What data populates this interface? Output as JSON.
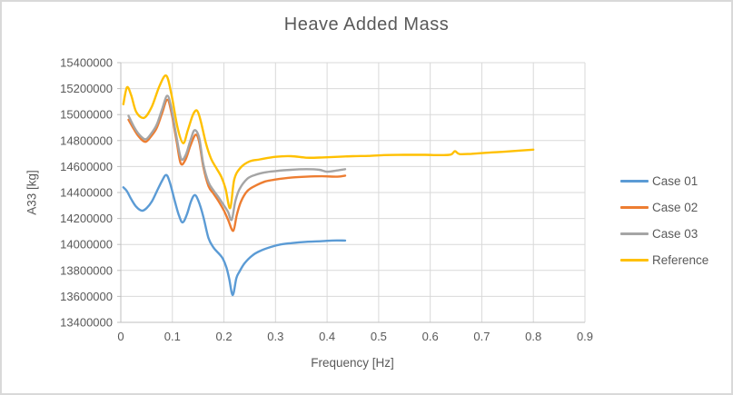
{
  "chart_data": {
    "type": "line",
    "title": "Heave Added Mass",
    "xlabel": "Frequency [Hz]",
    "ylabel": "A33 [kg]",
    "xlim": [
      0,
      0.9
    ],
    "ylim": [
      13400000,
      15400000
    ],
    "x_ticks": [
      0,
      0.1,
      0.2,
      0.3,
      0.4,
      0.5,
      0.6,
      0.7,
      0.8,
      0.9
    ],
    "x_tick_labels": [
      "0",
      "0.1",
      "0.2",
      "0.3",
      "0.4",
      "0.5",
      "0.6",
      "0.7",
      "0.8",
      "0.9"
    ],
    "y_ticks": [
      13400000,
      13600000,
      13800000,
      14000000,
      14200000,
      14400000,
      14600000,
      14800000,
      15000000,
      15200000,
      15400000
    ],
    "y_tick_labels": [
      "13400000",
      "13600000",
      "13800000",
      "14000000",
      "14200000",
      "14400000",
      "14600000",
      "14800000",
      "15000000",
      "15200000",
      "15400000"
    ],
    "grid": true,
    "legend_position": "right",
    "text_color": "#595959",
    "grid_color": "#D9D9D9",
    "axis_color": "#BFBFBF",
    "series": [
      {
        "name": "Case 01",
        "color": "#5B9BD5",
        "points": [
          [
            0.005,
            14440000
          ],
          [
            0.012,
            14410000
          ],
          [
            0.02,
            14350000
          ],
          [
            0.03,
            14290000
          ],
          [
            0.041,
            14260000
          ],
          [
            0.05,
            14280000
          ],
          [
            0.06,
            14330000
          ],
          [
            0.07,
            14410000
          ],
          [
            0.08,
            14490000
          ],
          [
            0.088,
            14535000
          ],
          [
            0.095,
            14480000
          ],
          [
            0.105,
            14330000
          ],
          [
            0.113,
            14220000
          ],
          [
            0.12,
            14170000
          ],
          [
            0.128,
            14230000
          ],
          [
            0.136,
            14330000
          ],
          [
            0.143,
            14380000
          ],
          [
            0.15,
            14340000
          ],
          [
            0.16,
            14215000
          ],
          [
            0.17,
            14050000
          ],
          [
            0.18,
            13975000
          ],
          [
            0.19,
            13930000
          ],
          [
            0.198,
            13890000
          ],
          [
            0.205,
            13820000
          ],
          [
            0.21,
            13740000
          ],
          [
            0.217,
            13610000
          ],
          [
            0.224,
            13740000
          ],
          [
            0.23,
            13790000
          ],
          [
            0.24,
            13855000
          ],
          [
            0.255,
            13915000
          ],
          [
            0.27,
            13950000
          ],
          [
            0.29,
            13980000
          ],
          [
            0.31,
            14000000
          ],
          [
            0.33,
            14010000
          ],
          [
            0.36,
            14020000
          ],
          [
            0.39,
            14025000
          ],
          [
            0.41,
            14030000
          ],
          [
            0.435,
            14030000
          ]
        ]
      },
      {
        "name": "Case 02",
        "color": "#ED7D31",
        "points": [
          [
            0.015,
            14960000
          ],
          [
            0.025,
            14890000
          ],
          [
            0.035,
            14830000
          ],
          [
            0.048,
            14790000
          ],
          [
            0.06,
            14840000
          ],
          [
            0.07,
            14900000
          ],
          [
            0.08,
            15010000
          ],
          [
            0.09,
            15115000
          ],
          [
            0.098,
            15020000
          ],
          [
            0.108,
            14800000
          ],
          [
            0.116,
            14625000
          ],
          [
            0.125,
            14650000
          ],
          [
            0.135,
            14760000
          ],
          [
            0.145,
            14845000
          ],
          [
            0.152,
            14790000
          ],
          [
            0.16,
            14600000
          ],
          [
            0.17,
            14450000
          ],
          [
            0.18,
            14390000
          ],
          [
            0.19,
            14330000
          ],
          [
            0.2,
            14260000
          ],
          [
            0.208,
            14190000
          ],
          [
            0.218,
            14105000
          ],
          [
            0.225,
            14230000
          ],
          [
            0.233,
            14330000
          ],
          [
            0.245,
            14410000
          ],
          [
            0.26,
            14450000
          ],
          [
            0.28,
            14485000
          ],
          [
            0.3,
            14500000
          ],
          [
            0.33,
            14515000
          ],
          [
            0.36,
            14522000
          ],
          [
            0.39,
            14525000
          ],
          [
            0.42,
            14522000
          ],
          [
            0.435,
            14530000
          ]
        ]
      },
      {
        "name": "Case 03",
        "color": "#A5A5A5",
        "points": [
          [
            0.015,
            14990000
          ],
          [
            0.025,
            14910000
          ],
          [
            0.035,
            14850000
          ],
          [
            0.048,
            14810000
          ],
          [
            0.06,
            14860000
          ],
          [
            0.07,
            14925000
          ],
          [
            0.08,
            15040000
          ],
          [
            0.09,
            15145000
          ],
          [
            0.098,
            15050000
          ],
          [
            0.108,
            14830000
          ],
          [
            0.117,
            14660000
          ],
          [
            0.126,
            14690000
          ],
          [
            0.135,
            14800000
          ],
          [
            0.143,
            14880000
          ],
          [
            0.152,
            14820000
          ],
          [
            0.16,
            14620000
          ],
          [
            0.17,
            14480000
          ],
          [
            0.18,
            14415000
          ],
          [
            0.19,
            14360000
          ],
          [
            0.2,
            14300000
          ],
          [
            0.208,
            14250000
          ],
          [
            0.215,
            14190000
          ],
          [
            0.222,
            14330000
          ],
          [
            0.23,
            14425000
          ],
          [
            0.245,
            14505000
          ],
          [
            0.26,
            14535000
          ],
          [
            0.28,
            14555000
          ],
          [
            0.3,
            14565000
          ],
          [
            0.33,
            14575000
          ],
          [
            0.36,
            14580000
          ],
          [
            0.385,
            14575000
          ],
          [
            0.4,
            14560000
          ],
          [
            0.42,
            14570000
          ],
          [
            0.435,
            14580000
          ]
        ]
      },
      {
        "name": "Reference",
        "color": "#FFC000",
        "points": [
          [
            0.005,
            15080000
          ],
          [
            0.012,
            15210000
          ],
          [
            0.02,
            15150000
          ],
          [
            0.03,
            15020000
          ],
          [
            0.045,
            14975000
          ],
          [
            0.06,
            15060000
          ],
          [
            0.075,
            15220000
          ],
          [
            0.088,
            15300000
          ],
          [
            0.098,
            15160000
          ],
          [
            0.11,
            14900000
          ],
          [
            0.121,
            14780000
          ],
          [
            0.13,
            14880000
          ],
          [
            0.14,
            15000000
          ],
          [
            0.148,
            15030000
          ],
          [
            0.155,
            14950000
          ],
          [
            0.165,
            14780000
          ],
          [
            0.175,
            14660000
          ],
          [
            0.185,
            14590000
          ],
          [
            0.195,
            14520000
          ],
          [
            0.203,
            14430000
          ],
          [
            0.212,
            14280000
          ],
          [
            0.22,
            14500000
          ],
          [
            0.232,
            14590000
          ],
          [
            0.25,
            14640000
          ],
          [
            0.27,
            14655000
          ],
          [
            0.3,
            14675000
          ],
          [
            0.33,
            14680000
          ],
          [
            0.36,
            14668000
          ],
          [
            0.39,
            14670000
          ],
          [
            0.42,
            14675000
          ],
          [
            0.45,
            14680000
          ],
          [
            0.48,
            14682000
          ],
          [
            0.51,
            14688000
          ],
          [
            0.55,
            14690000
          ],
          [
            0.59,
            14690000
          ],
          [
            0.62,
            14688000
          ],
          [
            0.64,
            14692000
          ],
          [
            0.648,
            14718000
          ],
          [
            0.657,
            14696000
          ],
          [
            0.68,
            14698000
          ],
          [
            0.71,
            14706000
          ],
          [
            0.75,
            14716000
          ],
          [
            0.8,
            14730000
          ]
        ]
      }
    ]
  }
}
